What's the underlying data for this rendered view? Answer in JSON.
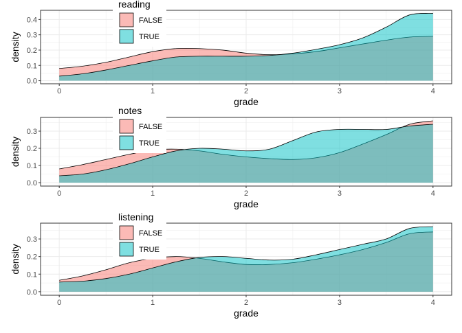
{
  "colors": {
    "false_fill": "#F8766D",
    "true_fill": "#00BFC4",
    "grid": "#ebebeb",
    "axis_text": "#4d4d4d",
    "title_text": "#000000"
  },
  "chart_data": [
    {
      "type": "area",
      "legend_title": "reading",
      "legend_placement": "top-left-inside",
      "xlabel": "grade",
      "ylabel": "density",
      "xlim": [
        -0.2,
        4.2
      ],
      "ylim": [
        -0.02,
        0.46
      ],
      "xticks": [
        0,
        1,
        2,
        3,
        4
      ],
      "yticks": [
        0.0,
        0.1,
        0.2,
        0.3,
        0.4
      ],
      "ytick_labels": [
        "0.0",
        "0.1",
        "0.2",
        "0.3",
        "0.4"
      ],
      "x": [
        0,
        0.25,
        0.5,
        0.75,
        1,
        1.25,
        1.5,
        1.75,
        2,
        2.25,
        2.5,
        2.75,
        3,
        3.25,
        3.5,
        3.75,
        4
      ],
      "series": [
        {
          "name": "FALSE",
          "values": [
            0.08,
            0.095,
            0.12,
            0.155,
            0.19,
            0.21,
            0.21,
            0.2,
            0.18,
            0.17,
            0.175,
            0.19,
            0.215,
            0.24,
            0.265,
            0.285,
            0.29
          ]
        },
        {
          "name": "TRUE",
          "values": [
            0.03,
            0.045,
            0.07,
            0.1,
            0.13,
            0.155,
            0.16,
            0.16,
            0.16,
            0.165,
            0.18,
            0.205,
            0.235,
            0.28,
            0.35,
            0.43,
            0.44
          ]
        }
      ]
    },
    {
      "type": "area",
      "legend_title": "notes",
      "legend_placement": "top-left-inside",
      "xlabel": "grade",
      "ylabel": "density",
      "xlim": [
        -0.2,
        4.2
      ],
      "ylim": [
        -0.02,
        0.38
      ],
      "xticks": [
        0,
        1,
        2,
        3,
        4
      ],
      "yticks": [
        0.0,
        0.1,
        0.2,
        0.3
      ],
      "ytick_labels": [
        "0.0",
        "0.1",
        "0.2",
        "0.3"
      ],
      "x": [
        0,
        0.25,
        0.5,
        0.75,
        1,
        1.25,
        1.5,
        1.75,
        2,
        2.25,
        2.5,
        2.75,
        3,
        3.25,
        3.5,
        3.75,
        4
      ],
      "series": [
        {
          "name": "FALSE",
          "values": [
            0.08,
            0.105,
            0.135,
            0.165,
            0.19,
            0.195,
            0.185,
            0.165,
            0.15,
            0.14,
            0.135,
            0.145,
            0.175,
            0.225,
            0.28,
            0.34,
            0.36
          ]
        },
        {
          "name": "TRUE",
          "values": [
            0.04,
            0.05,
            0.075,
            0.11,
            0.15,
            0.185,
            0.2,
            0.195,
            0.185,
            0.195,
            0.245,
            0.295,
            0.31,
            0.31,
            0.31,
            0.33,
            0.34
          ]
        }
      ]
    },
    {
      "type": "area",
      "legend_title": "listening",
      "legend_placement": "top-left-inside",
      "xlabel": "grade",
      "ylabel": "density",
      "xlim": [
        -0.2,
        4.2
      ],
      "ylim": [
        -0.02,
        0.39
      ],
      "xticks": [
        0,
        1,
        2,
        3,
        4
      ],
      "yticks": [
        0.0,
        0.1,
        0.2,
        0.3
      ],
      "ytick_labels": [
        "0.0",
        "0.1",
        "0.2",
        "0.3"
      ],
      "x": [
        0,
        0.25,
        0.5,
        0.75,
        1,
        1.25,
        1.5,
        1.75,
        2,
        2.25,
        2.5,
        2.75,
        3,
        3.25,
        3.5,
        3.75,
        4
      ],
      "series": [
        {
          "name": "FALSE",
          "values": [
            0.065,
            0.09,
            0.125,
            0.165,
            0.19,
            0.2,
            0.19,
            0.17,
            0.155,
            0.155,
            0.165,
            0.185,
            0.21,
            0.24,
            0.28,
            0.33,
            0.34
          ]
        },
        {
          "name": "TRUE",
          "values": [
            0.055,
            0.06,
            0.075,
            0.1,
            0.135,
            0.17,
            0.195,
            0.2,
            0.19,
            0.18,
            0.185,
            0.21,
            0.24,
            0.27,
            0.3,
            0.36,
            0.37
          ]
        }
      ]
    }
  ]
}
